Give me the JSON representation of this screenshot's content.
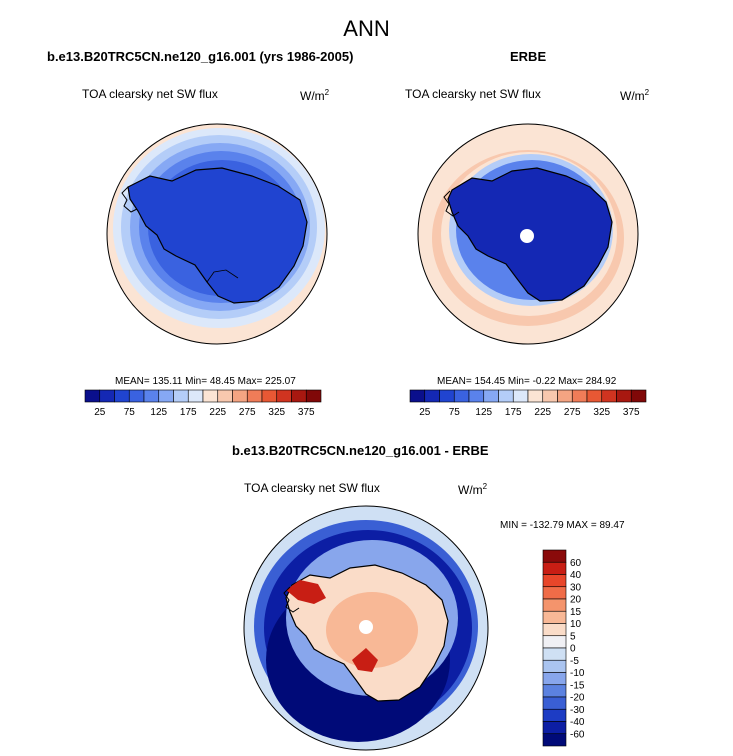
{
  "figure": {
    "title": "ANN"
  },
  "panels": [
    {
      "title": "b.e13.B20TRC5CN.ne120_g16.001 (yrs 1986-2005)",
      "left_label": "TOA clearsky net SW flux",
      "units_base": "W/m",
      "units_sup": "2",
      "stats": "MEAN= 135.11  Min=  48.45  Max= 225.07",
      "colorbar_ticks": [
        "25",
        "75",
        "125",
        "175",
        "225",
        "275",
        "325",
        "375"
      ]
    },
    {
      "title": "ERBE",
      "left_label": "TOA clearsky net SW flux",
      "units_base": "W/m",
      "units_sup": "2",
      "stats": "MEAN= 154.45  Min=  -0.22  Max= 284.92",
      "colorbar_ticks": [
        "25",
        "75",
        "125",
        "175",
        "225",
        "275",
        "325",
        "375"
      ]
    },
    {
      "title": "b.e13.B20TRC5CN.ne120_g16.001 - ERBE",
      "left_label": "TOA clearsky net SW flux",
      "units_base": "W/m",
      "units_sup": "2",
      "stats": "MIN = -132.79 MAX =  89.47",
      "colorbar_ticks": [
        "60",
        "40",
        "30",
        "20",
        "15",
        "10",
        "5",
        "0",
        "-5",
        "-10",
        "-15",
        "-20",
        "-30",
        "-40",
        "-60"
      ]
    }
  ],
  "palettes": {
    "abs": [
      "#0a0f8c",
      "#1428b4",
      "#2044d0",
      "#3a62e0",
      "#5a82ec",
      "#86a8f4",
      "#b4cdf8",
      "#dce8fa",
      "#fbe4d4",
      "#f8c8ae",
      "#f4a482",
      "#f07c58",
      "#e85834",
      "#d03420",
      "#a81810",
      "#800808"
    ],
    "diff": [
      "#8a0a0a",
      "#c81e14",
      "#e8462a",
      "#f06c48",
      "#f4946c",
      "#f8b896",
      "#fadcc8",
      "#f0f0f4",
      "#cfe0f4",
      "#aac4f0",
      "#88a6ec",
      "#5c82e0",
      "#3a5fd4",
      "#1d3cc4",
      "#0c1ea4",
      "#000a78"
    ]
  }
}
